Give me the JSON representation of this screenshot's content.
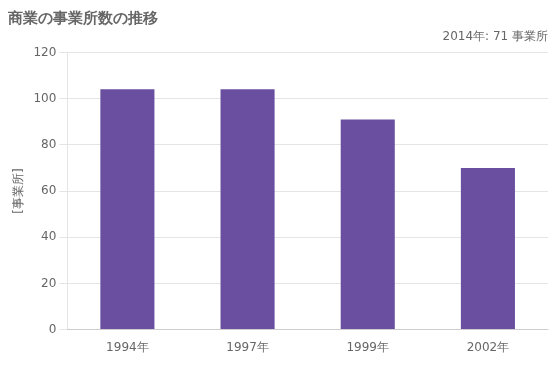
{
  "chart_data": {
    "type": "bar",
    "title": "商業の事業所数の推移",
    "ylabel": "[事業所]",
    "annotation": "2014年: 71 事業所",
    "categories": [
      "1994年",
      "1997年",
      "1999年",
      "2002年"
    ],
    "values": [
      104,
      104,
      91,
      70
    ],
    "color": "#6a4fa0",
    "ylim": [
      0,
      120
    ],
    "yticks": [
      0,
      20,
      40,
      60,
      80,
      100,
      120
    ],
    "grid": true
  }
}
